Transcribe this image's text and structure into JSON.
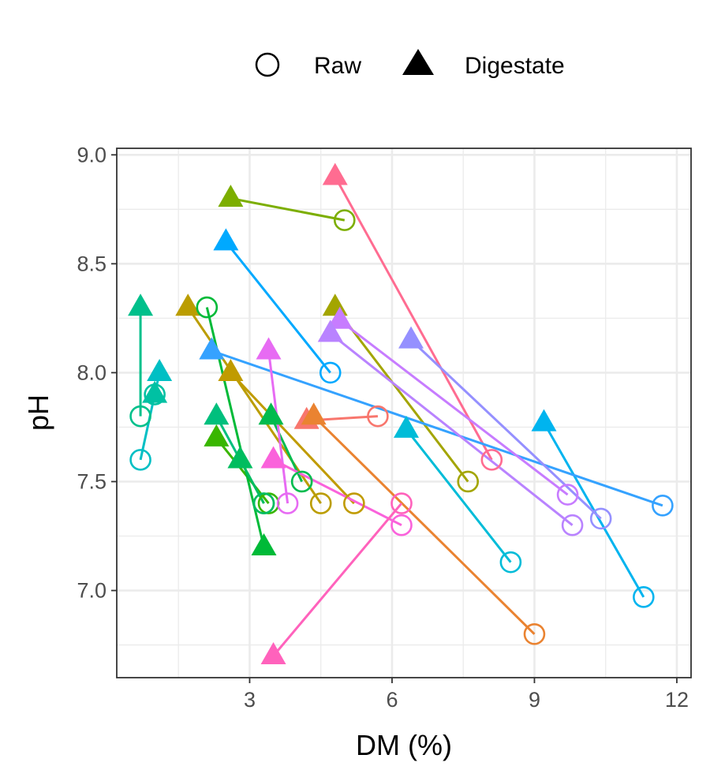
{
  "chart_data": {
    "type": "scatter",
    "xlabel": "DM (%)",
    "ylabel": "pH",
    "xlim": [
      0.2,
      12.3
    ],
    "ylim": [
      6.6,
      9.03
    ],
    "x_ticks": [
      3,
      6,
      9,
      12
    ],
    "x_tick_labels": [
      "3",
      "6",
      "9",
      "12"
    ],
    "y_ticks": [
      7.0,
      7.5,
      8.0,
      8.5,
      9.0
    ],
    "y_tick_labels": [
      "7.0",
      "7.5",
      "8.0",
      "8.5",
      "9.0"
    ],
    "grid": true,
    "legend": {
      "position": "top",
      "items": [
        {
          "label": "Raw",
          "shape": "open-circle"
        },
        {
          "label": "Digestate",
          "shape": "filled-triangle"
        }
      ]
    },
    "pairs": [
      {
        "color": "#F8766D",
        "raw": [
          5.7,
          7.8
        ],
        "digestate": [
          4.2,
          7.78
        ]
      },
      {
        "color": "#FF6C91",
        "raw": [
          8.1,
          7.6
        ],
        "digestate": [
          4.8,
          8.9
        ]
      },
      {
        "color": "#EA8331",
        "raw": [
          9.0,
          6.8
        ],
        "digestate": [
          4.35,
          7.8
        ]
      },
      {
        "color": "#BB9D00",
        "raw": [
          4.5,
          7.4
        ],
        "digestate": [
          1.7,
          8.3
        ]
      },
      {
        "color": "#C09B00",
        "raw": [
          5.2,
          7.4
        ],
        "digestate": [
          2.6,
          8.0
        ]
      },
      {
        "color": "#A3A500",
        "raw": [
          7.6,
          7.5
        ],
        "digestate": [
          4.8,
          8.3
        ]
      },
      {
        "color": "#7CAE00",
        "raw": [
          5.0,
          8.7
        ],
        "digestate": [
          2.6,
          8.8
        ]
      },
      {
        "color": "#39B600",
        "raw": [
          3.4,
          7.4
        ],
        "digestate": [
          2.3,
          7.7
        ]
      },
      {
        "color": "#00BB4E",
        "raw": [
          4.1,
          7.5
        ],
        "digestate": [
          3.45,
          7.8
        ]
      },
      {
        "color": "#00BA38",
        "raw": [
          2.1,
          8.3
        ],
        "digestate": [
          3.3,
          7.2
        ]
      },
      {
        "color": "#00C08B",
        "raw": [
          0.7,
          7.8
        ],
        "digestate": [
          0.7,
          8.3
        ]
      },
      {
        "color": "#00BF7D",
        "raw": [
          3.3,
          7.4
        ],
        "digestate": [
          2.3,
          7.8
        ]
      },
      {
        "color": "#00BD5F",
        "raw": [
          3.3,
          7.4
        ],
        "digestate": [
          2.8,
          7.6
        ]
      },
      {
        "color": "#00BFC4",
        "raw": [
          0.7,
          7.6
        ],
        "digestate": [
          1.1,
          8.0
        ]
      },
      {
        "color": "#00C1A3",
        "raw": [
          1.0,
          7.9
        ],
        "digestate": [
          1.0,
          7.9
        ]
      },
      {
        "color": "#00BCD8",
        "raw": [
          8.5,
          7.13
        ],
        "digestate": [
          6.3,
          7.74
        ]
      },
      {
        "color": "#00A9FF",
        "raw": [
          4.7,
          8.0
        ],
        "digestate": [
          2.5,
          8.6
        ]
      },
      {
        "color": "#00B4EF",
        "raw": [
          11.3,
          6.97
        ],
        "digestate": [
          9.2,
          7.77
        ]
      },
      {
        "color": "#35A2FF",
        "raw": [
          11.7,
          7.39
        ],
        "digestate": [
          2.2,
          8.1
        ]
      },
      {
        "color": "#9590FF",
        "raw": [
          10.4,
          7.33
        ],
        "digestate": [
          6.4,
          8.15
        ]
      },
      {
        "color": "#C77CFF",
        "raw": [
          9.7,
          7.44
        ],
        "digestate": [
          4.9,
          8.24
        ]
      },
      {
        "color": "#B983FF",
        "raw": [
          9.8,
          7.3
        ],
        "digestate": [
          4.7,
          8.18
        ]
      },
      {
        "color": "#E76BF3",
        "raw": [
          3.8,
          7.4
        ],
        "digestate": [
          3.4,
          8.1
        ]
      },
      {
        "color": "#FA62DB",
        "raw": [
          6.2,
          7.3
        ],
        "digestate": [
          3.5,
          7.6
        ]
      },
      {
        "color": "#FF62BC",
        "raw": [
          6.2,
          7.4
        ],
        "digestate": [
          3.5,
          6.7
        ]
      }
    ]
  }
}
